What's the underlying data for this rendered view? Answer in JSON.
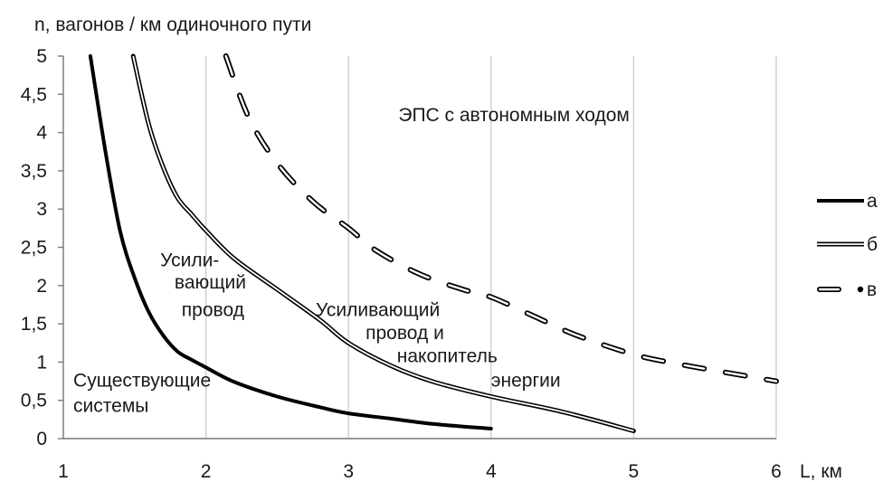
{
  "chart_data": {
    "type": "line",
    "title": "",
    "ylabel": "n, вагонов / км одиночного пути",
    "xlabel": "L, км",
    "xlim": [
      1,
      6
    ],
    "ylim": [
      0,
      5
    ],
    "xticks": [
      "1",
      "2",
      "3",
      "4",
      "5",
      "6"
    ],
    "yticks": [
      "0",
      "0,5",
      "1",
      "1,5",
      "2",
      "2,5",
      "3",
      "3,5",
      "4",
      "4,5",
      "5"
    ],
    "grid": "vertical",
    "legend_position": "right",
    "series": [
      {
        "name": "а",
        "style": "thick-solid",
        "color": "#000000",
        "x": [
          1.19,
          1.3,
          1.4,
          1.5,
          1.6,
          1.7,
          1.8,
          1.9,
          2.0,
          2.2,
          2.5,
          2.8,
          3.0,
          3.3,
          3.6,
          4.0
        ],
        "y": [
          5.0,
          3.7,
          2.7,
          2.1,
          1.65,
          1.35,
          1.14,
          1.03,
          0.93,
          0.74,
          0.55,
          0.41,
          0.33,
          0.26,
          0.19,
          0.13
        ]
      },
      {
        "name": "б",
        "style": "double-line",
        "color": "#000000",
        "x": [
          1.49,
          1.6,
          1.7,
          1.8,
          1.9,
          2.0,
          2.2,
          2.5,
          2.8,
          3.0,
          3.3,
          3.6,
          4.0,
          4.5,
          5.0
        ],
        "y": [
          5.0,
          4.1,
          3.55,
          3.15,
          2.93,
          2.72,
          2.35,
          1.95,
          1.55,
          1.25,
          0.95,
          0.74,
          0.55,
          0.35,
          0.1
        ]
      },
      {
        "name": "в",
        "style": "dashed",
        "color": "#000000",
        "x": [
          2.14,
          2.3,
          2.5,
          2.75,
          3.0,
          3.2,
          3.5,
          3.8,
          4.0,
          4.3,
          4.6,
          5.0,
          5.3,
          5.6,
          6.0
        ],
        "y": [
          5.0,
          4.2,
          3.6,
          3.1,
          2.75,
          2.45,
          2.15,
          1.95,
          1.85,
          1.6,
          1.35,
          1.1,
          0.98,
          0.88,
          0.75
        ]
      }
    ],
    "annotations": [
      {
        "text": "ЭПС с автономным ходом",
        "x": 3.35,
        "y": 4.15
      },
      {
        "text": "Усили-",
        "x": 1.68,
        "y": 2.25
      },
      {
        "text": "вающий",
        "x": 1.78,
        "y": 1.96
      },
      {
        "text": "провод",
        "x": 1.83,
        "y": 1.6
      },
      {
        "text": "Усиливающий",
        "x": 2.77,
        "y": 1.6
      },
      {
        "text": "провод и",
        "x": 3.12,
        "y": 1.3
      },
      {
        "text": "накопитель",
        "x": 3.34,
        "y": 1.0
      },
      {
        "text": "энергии",
        "x": 4.0,
        "y": 0.68
      },
      {
        "text": "Существующие",
        "x": 1.07,
        "y": 0.68
      },
      {
        "text": "системы",
        "x": 1.07,
        "y": 0.35
      }
    ]
  },
  "colors": {
    "line": "#000000",
    "grid": "#c8c8c8",
    "background": "#ffffff"
  }
}
